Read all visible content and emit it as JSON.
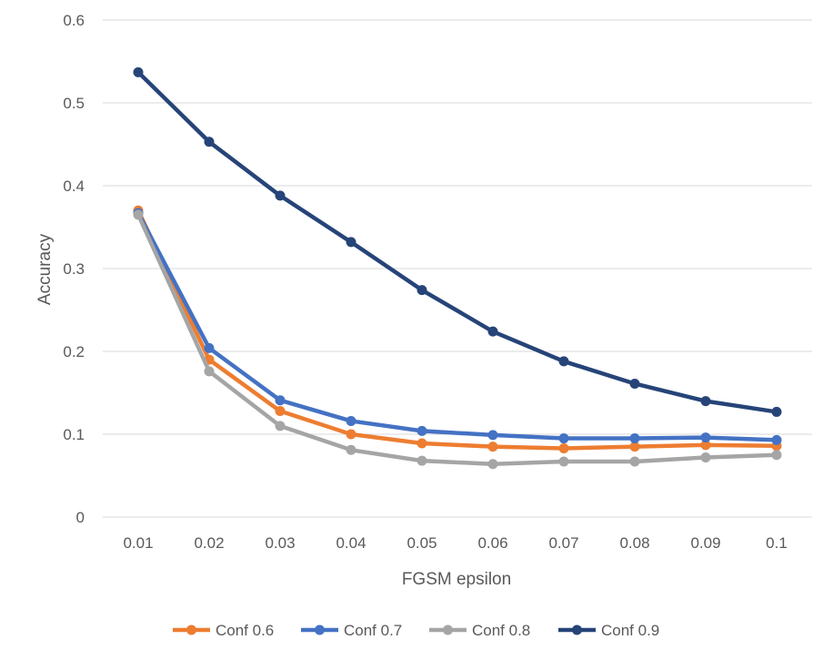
{
  "chart_data": {
    "type": "line",
    "title": "",
    "xlabel": "FGSM epsilon",
    "ylabel": "Accuracy",
    "categories": [
      "0.01",
      "0.02",
      "0.03",
      "0.04",
      "0.05",
      "0.06",
      "0.07",
      "0.08",
      "0.09",
      "0.1"
    ],
    "y_ticks": [
      "0",
      "0.1",
      "0.2",
      "0.3",
      "0.4",
      "0.5",
      "0.6"
    ],
    "ylim": [
      0,
      0.6
    ],
    "grid": true,
    "legend_position": "bottom",
    "series": [
      {
        "name": "Conf 0.6",
        "color": "#ed7d31",
        "values": [
          0.37,
          0.19,
          0.128,
          0.1,
          0.089,
          0.085,
          0.083,
          0.085,
          0.087,
          0.086
        ]
      },
      {
        "name": "Conf 0.7",
        "color": "#4472c4",
        "values": [
          0.367,
          0.204,
          0.141,
          0.116,
          0.104,
          0.099,
          0.095,
          0.095,
          0.096,
          0.093
        ]
      },
      {
        "name": "Conf 0.8",
        "color": "#a5a5a5",
        "values": [
          0.365,
          0.176,
          0.11,
          0.081,
          0.068,
          0.064,
          0.067,
          0.067,
          0.072,
          0.075
        ]
      },
      {
        "name": "Conf 0.9",
        "color": "#264478",
        "values": [
          0.537,
          0.453,
          0.388,
          0.332,
          0.274,
          0.224,
          0.188,
          0.161,
          0.14,
          0.127
        ]
      }
    ]
  }
}
